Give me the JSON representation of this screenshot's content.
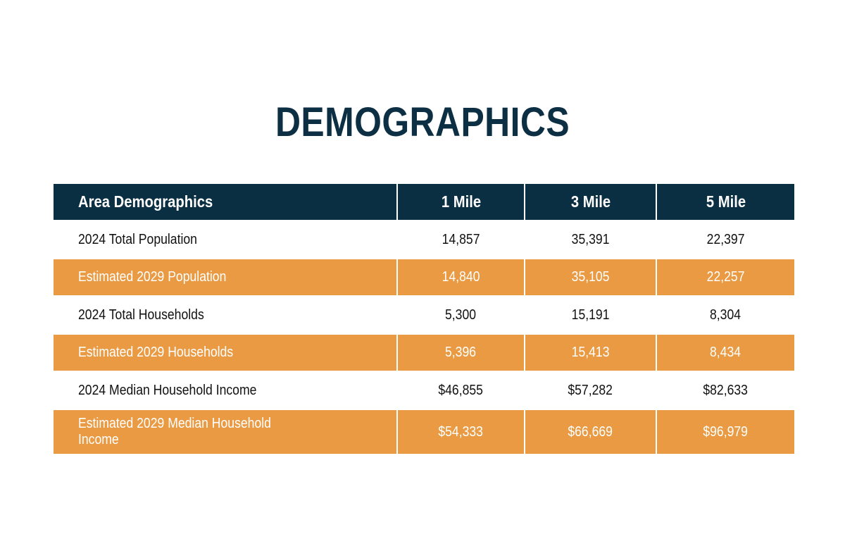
{
  "title": "DEMOGRAPHICS",
  "colors": {
    "header_bg": "#0a2f43",
    "title_text": "#0c2f43",
    "orange_row": "#e99a42",
    "white_row": "#ffffff"
  },
  "table": {
    "columns": [
      "Area Demographics",
      "1 Mile",
      "3 Mile",
      "5 Mile"
    ],
    "rows": [
      {
        "label": "2024 Total Population",
        "values": [
          "14,857",
          "35,391",
          "22,397"
        ],
        "style": "white"
      },
      {
        "label": "Estimated 2029 Population",
        "values": [
          "14,840",
          "35,105",
          "22,257"
        ],
        "style": "orange"
      },
      {
        "label": "2024 Total Households",
        "values": [
          "5,300",
          "15,191",
          "8,304"
        ],
        "style": "white"
      },
      {
        "label": "Estimated 2029 Households",
        "values": [
          "5,396",
          "15,413",
          "8,434"
        ],
        "style": "orange"
      },
      {
        "label": "2024 Median Household Income",
        "values": [
          "$46,855",
          "$57,282",
          "$82,633"
        ],
        "style": "white"
      },
      {
        "label": "Estimated 2029 Median Household Income",
        "values": [
          "$54,333",
          "$66,669",
          "$96,979"
        ],
        "style": "orange"
      }
    ]
  }
}
